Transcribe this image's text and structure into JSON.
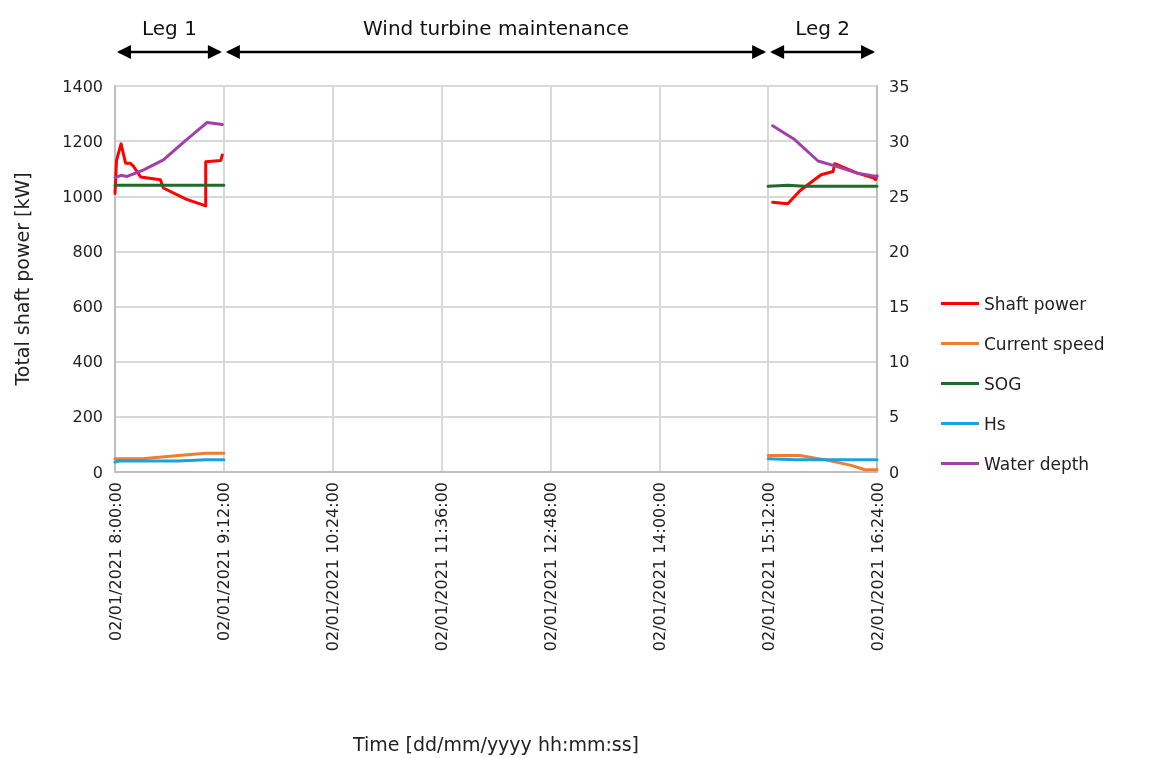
{
  "chart_data": {
    "type": "line",
    "xlabel": "Time [dd/mm/yyyy hh:mm:ss]",
    "ylabel": "Total shaft power [kW]",
    "xlim": [
      "2021-01-02T08:00",
      "2021-01-02T16:24"
    ],
    "xticks": [
      {
        "value": "2021-01-02T08:00",
        "label": "02/01/2021 8:00:00"
      },
      {
        "value": "2021-01-02T09:12",
        "label": "02/01/2021 9:12:00"
      },
      {
        "value": "2021-01-02T10:24",
        "label": "02/01/2021 10:24:00"
      },
      {
        "value": "2021-01-02T11:36",
        "label": "02/01/2021 11:36:00"
      },
      {
        "value": "2021-01-02T12:48",
        "label": "02/01/2021 12:48:00"
      },
      {
        "value": "2021-01-02T14:00",
        "label": "02/01/2021 14:00:00"
      },
      {
        "value": "2021-01-02T15:12",
        "label": "02/01/2021 15:12:00"
      },
      {
        "value": "2021-01-02T16:24",
        "label": "02/01/2021 16:24:00"
      }
    ],
    "ylim": [
      0,
      1400
    ],
    "yticks": [
      0,
      200,
      400,
      600,
      800,
      1000,
      1200,
      1400
    ],
    "y2lim": [
      0,
      35
    ],
    "y2ticks": [
      0,
      5,
      10,
      15,
      20,
      25,
      30,
      35
    ],
    "grid": true,
    "legend": "right",
    "marker": "none",
    "line_style": "solid",
    "annotations": [
      "Leg 1",
      "Wind turbine maintenance",
      "Leg 2"
    ],
    "series": [
      {
        "name": "Shaft power",
        "color": "#ff0000",
        "x": [
          "2021-01-02T08:00",
          "2021-01-02T08:01",
          "2021-01-02T08:04",
          "2021-01-02T08:07",
          "2021-01-02T08:10",
          "2021-01-02T08:12",
          "2021-01-02T08:17",
          "2021-01-02T08:30",
          "2021-01-02T08:32",
          "2021-01-02T08:47",
          "2021-01-02T09:00",
          "2021-01-02T09:00",
          "2021-01-02T09:10",
          "2021-01-02T09:11",
          null,
          "2021-01-02T15:15",
          "2021-01-02T15:25",
          "2021-01-02T15:33",
          "2021-01-02T15:47",
          "2021-01-02T15:55",
          "2021-01-02T15:56",
          "2021-01-02T16:11",
          "2021-01-02T16:22",
          "2021-01-02T16:23",
          "2021-01-02T16:24"
        ],
        "values": [
          1010,
          1130,
          1190,
          1120,
          1120,
          1110,
          1070,
          1060,
          1030,
          990,
          965,
          1125,
          1130,
          1150,
          null,
          978,
          973,
          1020,
          1078,
          1090,
          1118,
          1084,
          1066,
          1060,
          1074
        ]
      },
      {
        "name": "Current speed",
        "color": "#ed7d31",
        "axis": "y2",
        "x": [
          "2021-01-02T08:00",
          "2021-01-02T08:18",
          "2021-01-02T08:42",
          "2021-01-02T09:00",
          "2021-01-02T09:12",
          null,
          "2021-01-02T15:12",
          "2021-01-02T15:33",
          "2021-01-02T15:50",
          "2021-01-02T16:07",
          "2021-01-02T16:16",
          "2021-01-02T16:24"
        ],
        "values": [
          1.2,
          1.2,
          1.5,
          1.7,
          1.7,
          null,
          1.5,
          1.5,
          1.1,
          0.6,
          0.2,
          0.2
        ]
      },
      {
        "name": "SOG",
        "color": "#1e6b2a",
        "axis": "y2",
        "x": [
          "2021-01-02T08:00",
          "2021-01-02T08:30",
          "2021-01-02T09:12",
          null,
          "2021-01-02T15:12",
          "2021-01-02T15:25",
          "2021-01-02T15:36",
          "2021-01-02T16:24"
        ],
        "values": [
          26,
          26,
          26,
          null,
          25.9,
          26.0,
          25.9,
          25.9
        ]
      },
      {
        "name": "Hs",
        "color": "#19a2dc",
        "axis": "y2",
        "x": [
          "2021-01-02T08:00",
          "2021-01-02T08:03",
          "2021-01-02T08:42",
          "2021-01-02T09:00",
          "2021-01-02T09:12",
          null,
          "2021-01-02T15:12",
          "2021-01-02T15:30",
          "2021-01-02T16:24"
        ],
        "values": [
          0.9,
          1.0,
          1.0,
          1.1,
          1.1,
          null,
          1.2,
          1.1,
          1.1
        ]
      },
      {
        "name": "Water depth",
        "color": "#a040a8",
        "axis": "y2",
        "x": [
          "2021-01-02T08:00",
          "2021-01-02T08:04",
          "2021-01-02T08:08",
          "2021-01-02T08:19",
          "2021-01-02T08:32",
          "2021-01-02T08:47",
          "2021-01-02T09:01",
          "2021-01-02T09:11",
          null,
          "2021-01-02T15:15",
          "2021-01-02T15:29",
          "2021-01-02T15:45",
          "2021-01-02T15:55",
          "2021-01-02T16:11",
          "2021-01-02T16:24"
        ],
        "values": [
          26.7,
          26.9,
          26.8,
          27.4,
          28.3,
          30.1,
          31.7,
          31.5,
          null,
          31.4,
          30.2,
          28.2,
          27.8,
          27.1,
          26.8
        ]
      }
    ]
  }
}
